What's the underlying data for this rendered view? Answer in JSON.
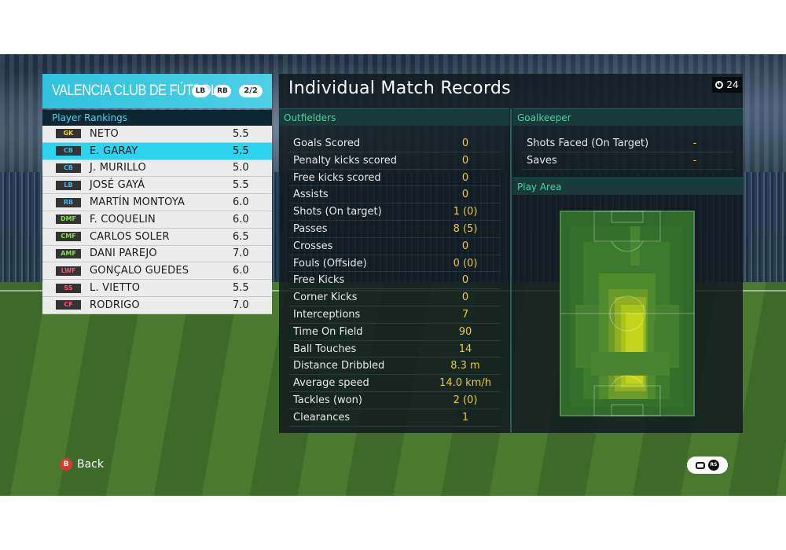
{
  "team": {
    "name": "VALENCIA CLUB DE FÚTBOL",
    "lb_label": "LB",
    "rb_label": "RB",
    "page": "2/2"
  },
  "rankings": {
    "title": "Player Rankings",
    "players": [
      {
        "pos": "GK",
        "name": "NETO",
        "score": "5.5",
        "group": "gk"
      },
      {
        "pos": "CB",
        "name": "E. GARAY",
        "score": "5.5",
        "group": "def",
        "selected": true
      },
      {
        "pos": "CB",
        "name": "J. MURILLO",
        "score": "5.0",
        "group": "def"
      },
      {
        "pos": "LB",
        "name": "JOSÉ GAYÁ",
        "score": "5.5",
        "group": "def"
      },
      {
        "pos": "RB",
        "name": "MARTÍN MONTOYA",
        "score": "6.0",
        "group": "def"
      },
      {
        "pos": "DMF",
        "name": "F. COQUELIN",
        "score": "6.0",
        "group": "mid"
      },
      {
        "pos": "CMF",
        "name": "CARLOS SOLER",
        "score": "6.5",
        "group": "mid"
      },
      {
        "pos": "AMF",
        "name": "DANI PAREJO",
        "score": "7.0",
        "group": "mid"
      },
      {
        "pos": "LWF",
        "name": "GONÇALO GUEDES",
        "score": "6.0",
        "group": "fwd"
      },
      {
        "pos": "SS",
        "name": "L. VIETTO",
        "score": "5.5",
        "group": "fwd"
      },
      {
        "pos": "CF",
        "name": "RODRIGO",
        "score": "7.0",
        "group": "fwd"
      }
    ]
  },
  "main": {
    "title": "Individual Match Records",
    "timer": "24"
  },
  "outfielders": {
    "title": "Outfielders",
    "stats": [
      {
        "label": "Goals Scored",
        "value": "0"
      },
      {
        "label": "Penalty kicks scored",
        "value": "0"
      },
      {
        "label": "Free kicks scored",
        "value": "0"
      },
      {
        "label": "Assists",
        "value": "0"
      },
      {
        "label": "Shots (On target)",
        "value": "1 (0)"
      },
      {
        "label": "Passes",
        "value": "8 (5)"
      },
      {
        "label": "Crosses",
        "value": "0"
      },
      {
        "label": "Fouls (Offside)",
        "value": "0 (0)"
      },
      {
        "label": "Free Kicks",
        "value": "0"
      },
      {
        "label": "Corner Kicks",
        "value": "0"
      },
      {
        "label": "Interceptions",
        "value": "7"
      },
      {
        "label": "Time On Field",
        "value": "90"
      },
      {
        "label": "Ball Touches",
        "value": "14"
      },
      {
        "label": "Distance Dribbled",
        "value": "8.3 m"
      },
      {
        "label": "Average speed",
        "value": "14.0 km/h"
      },
      {
        "label": "Tackles (won)",
        "value": "2 (0)"
      },
      {
        "label": "Clearances",
        "value": "1"
      }
    ]
  },
  "goalkeeper": {
    "title": "Goalkeeper",
    "stats": [
      {
        "label": "Shots Faced (On Target)",
        "value": "-"
      },
      {
        "label": "Saves",
        "value": "-"
      }
    ]
  },
  "play_area": {
    "title": "Play Area"
  },
  "controls": {
    "back_button": "B",
    "back_label": "Back",
    "rs_label": "RS"
  },
  "colors": {
    "accent": "#32c2dd",
    "stat_value": "#e9c93c",
    "section_header": "#46d59a"
  }
}
